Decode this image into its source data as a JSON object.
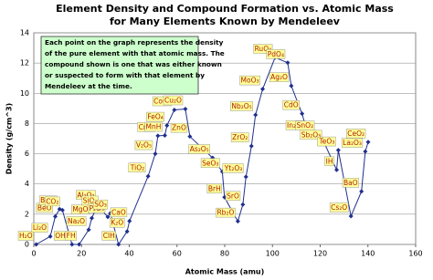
{
  "chart_data": {
    "type": "line",
    "title": "Element Density and Compound Formation vs. Atomic Mass",
    "subtitle": "for Many Elements Known by Mendeleev",
    "x_label": "Atomic Mass (amu)",
    "y_label": "Density (g/cm^3)",
    "annotation": [
      "Each point on the graph represents the density",
      "of the pure element with that atomic mass. The",
      "compound shown is one that was either known",
      "or suspected to form with that element by",
      "Mendeleev at the time."
    ],
    "x": [
      1,
      6.9,
      9,
      10.8,
      12,
      16,
      19,
      23,
      24.3,
      27,
      28.1,
      31,
      32.1,
      35.5,
      39.1,
      40.1,
      47.9,
      50.9,
      52,
      54.9,
      55.8,
      58.9,
      63.5,
      65.4,
      74.9,
      79,
      79.9,
      85.5,
      87.6,
      88.9,
      91.2,
      92.9,
      95.9,
      101.1,
      106.4,
      107.9,
      112.4,
      114.8,
      118.7,
      121.8,
      126.9,
      127.6,
      132.9,
      137.3,
      138.9,
      140.1
    ],
    "point_labels": [
      "H₂O",
      "Li₂O",
      "BeO",
      "B₂O₃",
      "CO₂",
      "OH₂",
      "FH",
      "Na₂O",
      "MgO",
      "Al₂O₃",
      "SiO₂",
      "P₂O₅",
      "SO₃",
      "ClH",
      "K₂O",
      "CaO",
      "TiO₂",
      "V₂O₅",
      "CrO₃",
      "MnH",
      "FeO₄",
      "CoO₄",
      "Cu₂O",
      "ZnO",
      "As₂O₅",
      "SeO₃",
      "BrH",
      "Rb₂O",
      "SrO",
      "Yt₂O₃",
      "ZrO₂",
      "Nb₂O₅",
      "MoO₃",
      "RuO₄",
      "PdO₄",
      "Ag₂O",
      "CdO",
      "In₂O₃",
      "SnO₂",
      "Sb₂O₃",
      "IH",
      "TeO₃",
      "Cs₂O",
      "BaO",
      "La₂O₃",
      "CeO₂"
    ],
    "series": [
      {
        "color": "#1f2f8c",
        "values": [
          0,
          0.53,
          1.85,
          2.34,
          2.27,
          0,
          0,
          0.97,
          1.74,
          2.7,
          2.33,
          1.82,
          2.07,
          0,
          0.86,
          1.55,
          4.51,
          6.0,
          7.19,
          7.21,
          7.87,
          8.9,
          8.96,
          7.14,
          5.73,
          4.81,
          3.12,
          1.53,
          2.64,
          4.47,
          6.51,
          8.57,
          10.28,
          12.37,
          12.02,
          10.49,
          8.65,
          7.31,
          7.29,
          6.68,
          4.93,
          6.24,
          1.87,
          3.51,
          6.15,
          6.77
        ]
      }
    ],
    "xlim": [
      0,
      160
    ],
    "xticks": [
      0,
      20,
      40,
      60,
      80,
      100,
      120,
      140,
      160
    ],
    "ylim": [
      0,
      14
    ],
    "yticks": [
      0,
      2,
      4,
      6,
      8,
      10,
      12,
      14
    ],
    "grid": true
  }
}
